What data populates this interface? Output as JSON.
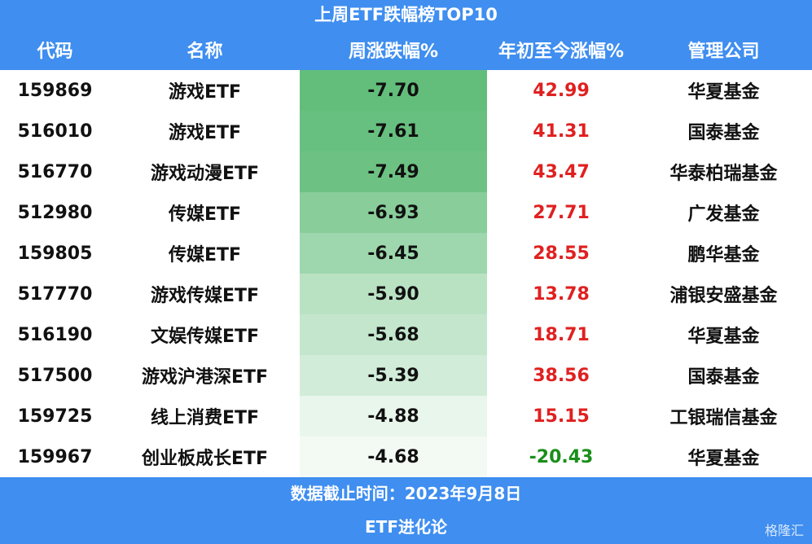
{
  "header": {
    "title": "上周ETF跌幅榜TOP10"
  },
  "table": {
    "columns": [
      "代码",
      "名称",
      "周涨跌幅%",
      "年初至今涨幅%",
      "管理公司"
    ],
    "rows": [
      [
        "159869",
        "游戏ETF",
        "-7.70",
        "42.99",
        "华夏基金"
      ],
      [
        "516010",
        "游戏ETF",
        "-7.61",
        "41.31",
        "国泰基金"
      ],
      [
        "516770",
        "游戏动漫ETF",
        "-7.49",
        "43.47",
        "华泰柏瑞基金"
      ],
      [
        "512980",
        "传媒ETF",
        "-6.93",
        "27.71",
        "广发基金"
      ],
      [
        "159805",
        "传媒ETF",
        "-6.45",
        "28.55",
        "鹏华基金"
      ],
      [
        "517770",
        "游戏传媒ETF",
        "-5.90",
        "13.78",
        "浦银安盛基金"
      ],
      [
        "516190",
        "文娱传媒ETF",
        "-5.68",
        "18.71",
        "华夏基金"
      ],
      [
        "517500",
        "游戏沪港深ETF",
        "-5.39",
        "38.56",
        "国泰基金"
      ],
      [
        "159725",
        "线上消费ETF",
        "-4.88",
        "15.15",
        "工银瑞信基金"
      ],
      [
        "159967",
        "创业板成长ETF",
        "-4.68",
        "-20.43",
        "华夏基金"
      ]
    ]
  },
  "footer": {
    "date": "数据截止时间：2023年9月8日",
    "source": "ETF进化论"
  },
  "watermark": "格隆汇"
}
